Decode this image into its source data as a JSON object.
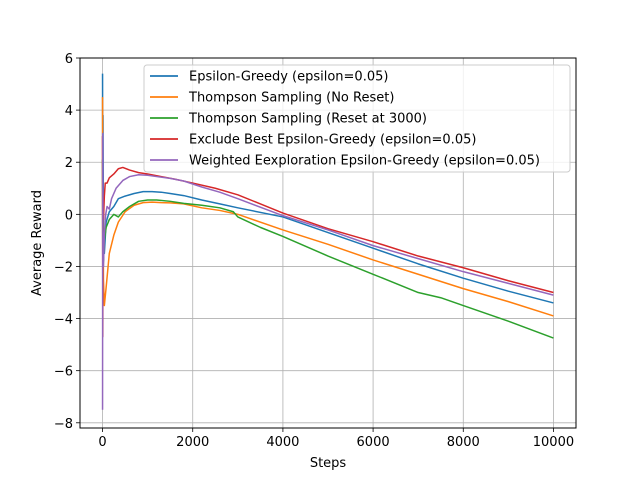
{
  "chart_data": {
    "type": "line",
    "title": "",
    "xlabel": "Steps",
    "ylabel": "Average Reward",
    "xlim": [
      -500,
      10500
    ],
    "ylim": [
      -8.2,
      6.0
    ],
    "xticks": [
      0,
      2000,
      4000,
      6000,
      8000,
      10000
    ],
    "yticks": [
      -8,
      -6,
      -4,
      -2,
      0,
      2,
      4,
      6
    ],
    "grid": true,
    "legend_position": "upper-right",
    "series": [
      {
        "name": "Epsilon-Greedy (epsilon=0.05)",
        "color": "#1f77b4",
        "points": [
          [
            0,
            5.4
          ],
          [
            5,
            -1.0
          ],
          [
            10,
            3.8
          ],
          [
            20,
            -0.5
          ],
          [
            40,
            -1.5
          ],
          [
            80,
            -0.3
          ],
          [
            150,
            0.1
          ],
          [
            250,
            0.3
          ],
          [
            350,
            0.6
          ],
          [
            500,
            0.7
          ],
          [
            700,
            0.8
          ],
          [
            900,
            0.87
          ],
          [
            1100,
            0.87
          ],
          [
            1300,
            0.85
          ],
          [
            1500,
            0.8
          ],
          [
            1800,
            0.72
          ],
          [
            2200,
            0.55
          ],
          [
            2600,
            0.4
          ],
          [
            3000,
            0.25
          ],
          [
            4000,
            -0.1
          ],
          [
            5000,
            -0.7
          ],
          [
            6000,
            -1.3
          ],
          [
            7000,
            -1.9
          ],
          [
            8000,
            -2.45
          ],
          [
            9000,
            -2.95
          ],
          [
            10000,
            -3.4
          ]
        ]
      },
      {
        "name": "Thompson Sampling (No Reset)",
        "color": "#ff7f0e",
        "points": [
          [
            0,
            4.5
          ],
          [
            5,
            -3.0
          ],
          [
            10,
            0.5
          ],
          [
            20,
            -2.5
          ],
          [
            40,
            -3.5
          ],
          [
            80,
            -2.8
          ],
          [
            150,
            -1.5
          ],
          [
            250,
            -0.8
          ],
          [
            350,
            -0.3
          ],
          [
            500,
            0.1
          ],
          [
            700,
            0.35
          ],
          [
            900,
            0.45
          ],
          [
            1100,
            0.47
          ],
          [
            1300,
            0.45
          ],
          [
            1500,
            0.44
          ],
          [
            1800,
            0.4
          ],
          [
            2200,
            0.25
          ],
          [
            2600,
            0.15
          ],
          [
            3000,
            0.0
          ],
          [
            4000,
            -0.6
          ],
          [
            5000,
            -1.15
          ],
          [
            6000,
            -1.75
          ],
          [
            7000,
            -2.3
          ],
          [
            8000,
            -2.85
          ],
          [
            9000,
            -3.35
          ],
          [
            10000,
            -3.9
          ]
        ]
      },
      {
        "name": "Thompson Sampling (Reset at 3000)",
        "color": "#2ca02c",
        "points": [
          [
            0,
            2.1
          ],
          [
            5,
            -2.0
          ],
          [
            10,
            0.5
          ],
          [
            20,
            -1.8
          ],
          [
            40,
            -1.0
          ],
          [
            80,
            -0.5
          ],
          [
            150,
            -0.2
          ],
          [
            250,
            0.0
          ],
          [
            350,
            -0.1
          ],
          [
            450,
            0.1
          ],
          [
            600,
            0.3
          ],
          [
            800,
            0.5
          ],
          [
            1000,
            0.55
          ],
          [
            1200,
            0.55
          ],
          [
            1500,
            0.5
          ],
          [
            1800,
            0.42
          ],
          [
            2200,
            0.35
          ],
          [
            2600,
            0.25
          ],
          [
            2900,
            0.1
          ],
          [
            3000,
            -0.1
          ],
          [
            3500,
            -0.5
          ],
          [
            4000,
            -0.85
          ],
          [
            5000,
            -1.6
          ],
          [
            6000,
            -2.3
          ],
          [
            7000,
            -3.0
          ],
          [
            7500,
            -3.2
          ],
          [
            8000,
            -3.5
          ],
          [
            9000,
            -4.1
          ],
          [
            10000,
            -4.75
          ]
        ]
      },
      {
        "name": "Exclude Best Epsilon-Greedy (epsilon=0.05)",
        "color": "#d62728",
        "points": [
          [
            0,
            3.0
          ],
          [
            5,
            -4.7
          ],
          [
            10,
            0.5
          ],
          [
            20,
            -0.2
          ],
          [
            40,
            0.7
          ],
          [
            60,
            1.2
          ],
          [
            100,
            1.2
          ],
          [
            150,
            1.4
          ],
          [
            250,
            1.55
          ],
          [
            350,
            1.75
          ],
          [
            450,
            1.8
          ],
          [
            600,
            1.7
          ],
          [
            800,
            1.6
          ],
          [
            1000,
            1.55
          ],
          [
            1300,
            1.45
          ],
          [
            1600,
            1.35
          ],
          [
            2000,
            1.2
          ],
          [
            2500,
            1.0
          ],
          [
            3000,
            0.75
          ],
          [
            4000,
            0.05
          ],
          [
            5000,
            -0.55
          ],
          [
            6000,
            -1.05
          ],
          [
            7000,
            -1.6
          ],
          [
            8000,
            -2.05
          ],
          [
            9000,
            -2.55
          ],
          [
            10000,
            -3.0
          ]
        ]
      },
      {
        "name": "Weighted Eexploration Epsilon-Greedy (epsilon=0.05)",
        "color": "#9467bd",
        "points": [
          [
            0,
            -7.5
          ],
          [
            5,
            3.1
          ],
          [
            10,
            -1.0
          ],
          [
            20,
            -2.0
          ],
          [
            40,
            -0.8
          ],
          [
            70,
            0.0
          ],
          [
            100,
            0.3
          ],
          [
            150,
            0.2
          ],
          [
            200,
            0.6
          ],
          [
            300,
            1.0
          ],
          [
            450,
            1.3
          ],
          [
            600,
            1.45
          ],
          [
            800,
            1.52
          ],
          [
            1000,
            1.5
          ],
          [
            1200,
            1.45
          ],
          [
            1500,
            1.38
          ],
          [
            1800,
            1.28
          ],
          [
            2200,
            1.05
          ],
          [
            2600,
            0.85
          ],
          [
            3000,
            0.6
          ],
          [
            4000,
            -0.05
          ],
          [
            5000,
            -0.6
          ],
          [
            6000,
            -1.2
          ],
          [
            7000,
            -1.7
          ],
          [
            8000,
            -2.2
          ],
          [
            9000,
            -2.65
          ],
          [
            10000,
            -3.1
          ]
        ]
      }
    ]
  }
}
